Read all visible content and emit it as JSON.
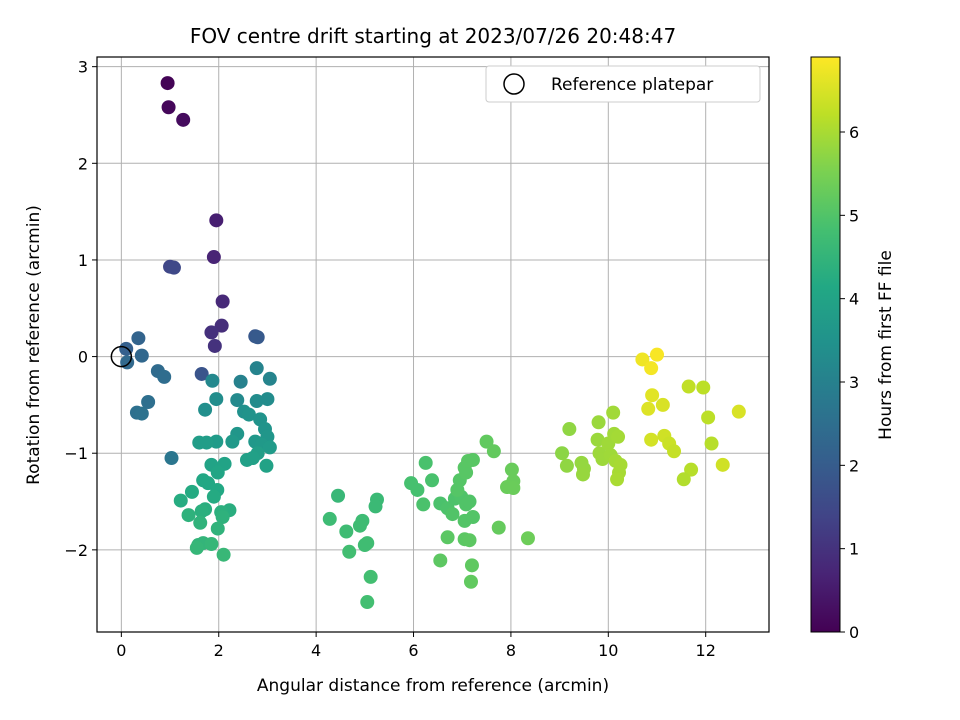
{
  "chart_data": {
    "type": "scatter",
    "title": "FOV centre drift starting at 2023/07/26 20:48:47",
    "xlabel": "Angular distance from reference (arcmin)",
    "ylabel": "Rotation from reference (arcmin)",
    "xlim": [
      -0.5,
      13.3
    ],
    "ylim": [
      -2.85,
      3.1
    ],
    "xticks": [
      0,
      2,
      4,
      6,
      8,
      10,
      12
    ],
    "yticks": [
      -2,
      -1,
      0,
      1,
      2,
      3
    ],
    "grid": true,
    "legend": {
      "placement": "top-right",
      "entries": [
        "Reference platepar"
      ]
    },
    "reference_point": {
      "x": 0,
      "y": 0
    },
    "colorbar": {
      "label": "Hours from first FF file",
      "range": [
        0,
        6.9
      ],
      "ticks": [
        0,
        1,
        2,
        3,
        4,
        5,
        6
      ],
      "colormap": "viridis"
    },
    "points": [
      {
        "x": 0.95,
        "y": 2.83,
        "c": 0.05
      },
      {
        "x": 0.97,
        "y": 2.58,
        "c": 0.12
      },
      {
        "x": 1.27,
        "y": 2.45,
        "c": 0.2
      },
      {
        "x": 1.95,
        "y": 1.41,
        "c": 0.6
      },
      {
        "x": 1.9,
        "y": 1.03,
        "c": 0.7
      },
      {
        "x": 2.08,
        "y": 0.57,
        "c": 0.8
      },
      {
        "x": 2.06,
        "y": 0.32,
        "c": 0.9
      },
      {
        "x": 1.85,
        "y": 0.25,
        "c": 0.95
      },
      {
        "x": 1.92,
        "y": 0.11,
        "c": 1.0
      },
      {
        "x": 1.0,
        "y": 0.93,
        "c": 1.45
      },
      {
        "x": 1.08,
        "y": 0.92,
        "c": 1.5
      },
      {
        "x": 0.1,
        "y": 0.08,
        "c": 2.1
      },
      {
        "x": 0.35,
        "y": 0.19,
        "c": 2.2
      },
      {
        "x": 0.42,
        "y": 0.01,
        "c": 2.3
      },
      {
        "x": 0.12,
        "y": -0.06,
        "c": 2.35
      },
      {
        "x": 0.75,
        "y": -0.15,
        "c": 2.4
      },
      {
        "x": 0.88,
        "y": -0.21,
        "c": 2.45
      },
      {
        "x": 0.55,
        "y": -0.47,
        "c": 2.5
      },
      {
        "x": 0.32,
        "y": -0.58,
        "c": 2.55
      },
      {
        "x": 0.42,
        "y": -0.59,
        "c": 2.6
      },
      {
        "x": 1.03,
        "y": -1.05,
        "c": 2.7
      },
      {
        "x": 1.65,
        "y": -0.18,
        "c": 1.8
      },
      {
        "x": 2.75,
        "y": 0.21,
        "c": 1.9
      },
      {
        "x": 2.8,
        "y": 0.2,
        "c": 1.95
      },
      {
        "x": 2.45,
        "y": -0.26,
        "c": 3.0
      },
      {
        "x": 2.78,
        "y": -0.12,
        "c": 3.05
      },
      {
        "x": 3.05,
        "y": -0.23,
        "c": 3.1
      },
      {
        "x": 1.87,
        "y": -0.25,
        "c": 3.2
      },
      {
        "x": 2.38,
        "y": -0.45,
        "c": 3.25
      },
      {
        "x": 2.78,
        "y": -0.46,
        "c": 3.3
      },
      {
        "x": 3.0,
        "y": -0.44,
        "c": 3.3
      },
      {
        "x": 1.95,
        "y": -0.44,
        "c": 3.35
      },
      {
        "x": 1.72,
        "y": -0.55,
        "c": 3.4
      },
      {
        "x": 2.52,
        "y": -0.57,
        "c": 3.45
      },
      {
        "x": 2.62,
        "y": -0.6,
        "c": 3.5
      },
      {
        "x": 2.85,
        "y": -0.65,
        "c": 3.5
      },
      {
        "x": 2.95,
        "y": -0.75,
        "c": 3.55
      },
      {
        "x": 2.38,
        "y": -0.8,
        "c": 3.6
      },
      {
        "x": 3.0,
        "y": -0.83,
        "c": 3.6
      },
      {
        "x": 2.75,
        "y": -0.88,
        "c": 3.65
      },
      {
        "x": 2.88,
        "y": -0.91,
        "c": 3.7
      },
      {
        "x": 3.05,
        "y": -0.94,
        "c": 3.75
      },
      {
        "x": 2.28,
        "y": -0.88,
        "c": 3.7
      },
      {
        "x": 1.95,
        "y": -0.88,
        "c": 3.75
      },
      {
        "x": 1.6,
        "y": -0.89,
        "c": 3.8
      },
      {
        "x": 1.75,
        "y": -0.89,
        "c": 3.8
      },
      {
        "x": 2.8,
        "y": -1.0,
        "c": 3.85
      },
      {
        "x": 2.58,
        "y": -1.07,
        "c": 3.9
      },
      {
        "x": 2.7,
        "y": -1.05,
        "c": 3.9
      },
      {
        "x": 2.98,
        "y": -1.13,
        "c": 3.95
      },
      {
        "x": 2.12,
        "y": -1.11,
        "c": 4.0
      },
      {
        "x": 1.85,
        "y": -1.12,
        "c": 4.0
      },
      {
        "x": 1.98,
        "y": -1.2,
        "c": 4.05
      },
      {
        "x": 1.68,
        "y": -1.28,
        "c": 4.1
      },
      {
        "x": 1.78,
        "y": -1.31,
        "c": 4.1
      },
      {
        "x": 1.97,
        "y": -1.38,
        "c": 4.15
      },
      {
        "x": 1.45,
        "y": -1.4,
        "c": 4.2
      },
      {
        "x": 1.9,
        "y": -1.45,
        "c": 4.2
      },
      {
        "x": 1.22,
        "y": -1.49,
        "c": 4.25
      },
      {
        "x": 1.72,
        "y": -1.58,
        "c": 4.3
      },
      {
        "x": 2.22,
        "y": -1.59,
        "c": 4.3
      },
      {
        "x": 1.65,
        "y": -1.6,
        "c": 4.35
      },
      {
        "x": 2.05,
        "y": -1.61,
        "c": 4.35
      },
      {
        "x": 1.38,
        "y": -1.64,
        "c": 4.4
      },
      {
        "x": 2.08,
        "y": -1.66,
        "c": 4.4
      },
      {
        "x": 1.62,
        "y": -1.72,
        "c": 4.45
      },
      {
        "x": 1.98,
        "y": -1.78,
        "c": 4.45
      },
      {
        "x": 1.58,
        "y": -1.95,
        "c": 4.5
      },
      {
        "x": 1.68,
        "y": -1.93,
        "c": 4.5
      },
      {
        "x": 1.85,
        "y": -1.94,
        "c": 4.55
      },
      {
        "x": 1.55,
        "y": -1.98,
        "c": 4.55
      },
      {
        "x": 2.1,
        "y": -2.05,
        "c": 4.6
      },
      {
        "x": 4.45,
        "y": -1.44,
        "c": 4.6
      },
      {
        "x": 5.25,
        "y": -1.48,
        "c": 4.65
      },
      {
        "x": 5.22,
        "y": -1.55,
        "c": 4.65
      },
      {
        "x": 4.28,
        "y": -1.68,
        "c": 4.7
      },
      {
        "x": 4.95,
        "y": -1.7,
        "c": 4.7
      },
      {
        "x": 4.9,
        "y": -1.75,
        "c": 4.72
      },
      {
        "x": 4.62,
        "y": -1.81,
        "c": 4.72
      },
      {
        "x": 5.05,
        "y": -1.93,
        "c": 4.75
      },
      {
        "x": 5.0,
        "y": -1.95,
        "c": 4.75
      },
      {
        "x": 4.68,
        "y": -2.02,
        "c": 4.78
      },
      {
        "x": 5.12,
        "y": -2.28,
        "c": 4.8
      },
      {
        "x": 5.05,
        "y": -2.54,
        "c": 4.8
      },
      {
        "x": 5.95,
        "y": -1.31,
        "c": 4.85
      },
      {
        "x": 6.08,
        "y": -1.38,
        "c": 4.85
      },
      {
        "x": 6.25,
        "y": -1.1,
        "c": 4.9
      },
      {
        "x": 6.38,
        "y": -1.28,
        "c": 4.9
      },
      {
        "x": 6.2,
        "y": -1.53,
        "c": 4.92
      },
      {
        "x": 6.55,
        "y": -1.52,
        "c": 4.92
      },
      {
        "x": 6.7,
        "y": -1.57,
        "c": 4.95
      },
      {
        "x": 6.85,
        "y": -1.47,
        "c": 4.95
      },
      {
        "x": 6.98,
        "y": -1.45,
        "c": 4.97
      },
      {
        "x": 7.08,
        "y": -1.53,
        "c": 5.0
      },
      {
        "x": 7.15,
        "y": -1.5,
        "c": 5.0
      },
      {
        "x": 6.8,
        "y": -1.63,
        "c": 5.0
      },
      {
        "x": 7.05,
        "y": -1.7,
        "c": 5.02
      },
      {
        "x": 7.22,
        "y": -1.66,
        "c": 5.02
      },
      {
        "x": 6.9,
        "y": -1.38,
        "c": 5.05
      },
      {
        "x": 6.95,
        "y": -1.28,
        "c": 5.05
      },
      {
        "x": 7.08,
        "y": -1.2,
        "c": 5.08
      },
      {
        "x": 7.05,
        "y": -1.15,
        "c": 5.08
      },
      {
        "x": 7.12,
        "y": -1.08,
        "c": 5.1
      },
      {
        "x": 7.22,
        "y": -1.07,
        "c": 5.1
      },
      {
        "x": 6.7,
        "y": -1.87,
        "c": 5.12
      },
      {
        "x": 7.05,
        "y": -1.89,
        "c": 5.12
      },
      {
        "x": 7.15,
        "y": -1.9,
        "c": 5.15
      },
      {
        "x": 6.55,
        "y": -2.11,
        "c": 5.15
      },
      {
        "x": 7.2,
        "y": -2.16,
        "c": 5.18
      },
      {
        "x": 7.18,
        "y": -2.33,
        "c": 5.2
      },
      {
        "x": 7.5,
        "y": -0.88,
        "c": 5.2
      },
      {
        "x": 7.65,
        "y": -0.98,
        "c": 5.22
      },
      {
        "x": 7.75,
        "y": -1.77,
        "c": 5.25
      },
      {
        "x": 8.02,
        "y": -1.17,
        "c": 5.3
      },
      {
        "x": 8.05,
        "y": -1.29,
        "c": 5.3
      },
      {
        "x": 7.92,
        "y": -1.35,
        "c": 5.32
      },
      {
        "x": 8.05,
        "y": -1.36,
        "c": 5.32
      },
      {
        "x": 8.35,
        "y": -1.88,
        "c": 5.35
      },
      {
        "x": 9.05,
        "y": -1.0,
        "c": 5.7
      },
      {
        "x": 9.2,
        "y": -0.75,
        "c": 5.75
      },
      {
        "x": 9.15,
        "y": -1.13,
        "c": 5.75
      },
      {
        "x": 9.45,
        "y": -1.1,
        "c": 5.8
      },
      {
        "x": 9.5,
        "y": -1.16,
        "c": 5.8
      },
      {
        "x": 9.48,
        "y": -1.22,
        "c": 5.82
      },
      {
        "x": 9.8,
        "y": -0.68,
        "c": 5.85
      },
      {
        "x": 9.78,
        "y": -0.86,
        "c": 5.85
      },
      {
        "x": 9.82,
        "y": -1.0,
        "c": 5.88
      },
      {
        "x": 9.88,
        "y": -1.06,
        "c": 5.88
      },
      {
        "x": 10.0,
        "y": -0.9,
        "c": 5.9
      },
      {
        "x": 10.05,
        "y": -1.02,
        "c": 5.9
      },
      {
        "x": 10.1,
        "y": -0.58,
        "c": 5.92
      },
      {
        "x": 10.12,
        "y": -0.8,
        "c": 5.92
      },
      {
        "x": 10.2,
        "y": -0.83,
        "c": 5.95
      },
      {
        "x": 10.15,
        "y": -1.08,
        "c": 5.95
      },
      {
        "x": 10.25,
        "y": -1.12,
        "c": 5.98
      },
      {
        "x": 10.22,
        "y": -1.2,
        "c": 5.98
      },
      {
        "x": 10.18,
        "y": -1.27,
        "c": 6.0
      },
      {
        "x": 10.7,
        "y": -0.03,
        "c": 6.75
      },
      {
        "x": 10.88,
        "y": -0.12,
        "c": 6.8
      },
      {
        "x": 11.0,
        "y": 0.02,
        "c": 6.85
      },
      {
        "x": 10.9,
        "y": -0.4,
        "c": 6.6
      },
      {
        "x": 10.82,
        "y": -0.54,
        "c": 6.55
      },
      {
        "x": 11.12,
        "y": -0.5,
        "c": 6.5
      },
      {
        "x": 10.88,
        "y": -0.86,
        "c": 6.45
      },
      {
        "x": 11.15,
        "y": -0.82,
        "c": 6.4
      },
      {
        "x": 11.25,
        "y": -0.9,
        "c": 6.35
      },
      {
        "x": 11.35,
        "y": -0.98,
        "c": 6.3
      },
      {
        "x": 11.65,
        "y": -0.31,
        "c": 6.25
      },
      {
        "x": 11.95,
        "y": -0.32,
        "c": 6.2
      },
      {
        "x": 12.05,
        "y": -0.63,
        "c": 6.2
      },
      {
        "x": 12.12,
        "y": -0.9,
        "c": 6.15
      },
      {
        "x": 11.7,
        "y": -1.17,
        "c": 6.15
      },
      {
        "x": 11.55,
        "y": -1.27,
        "c": 6.1
      },
      {
        "x": 12.35,
        "y": -1.12,
        "c": 6.4
      },
      {
        "x": 12.68,
        "y": -0.57,
        "c": 6.5
      }
    ]
  }
}
